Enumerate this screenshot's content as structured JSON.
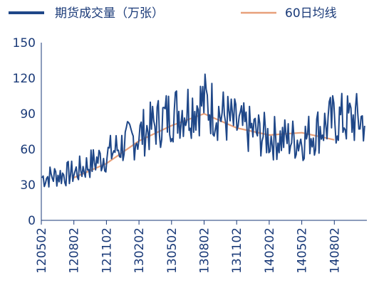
{
  "chart_data": {
    "type": "line",
    "title": "",
    "xlabel": "",
    "ylabel": "",
    "ylim": [
      0,
      150
    ],
    "yticks": [
      0,
      30,
      60,
      90,
      120,
      150
    ],
    "x_tick_labels": [
      "120502",
      "120802",
      "121102",
      "130202",
      "130502",
      "130802",
      "131102",
      "140202",
      "140502",
      "140802"
    ],
    "grid": false,
    "legend_position": "top",
    "colors": {
      "volume": "#1f4788",
      "ma60": "#e8a07a",
      "axis": "#1a3a78"
    },
    "series": [
      {
        "name": "期货成交量（万张）",
        "x": [
          "120502",
          "120802",
          "121102",
          "130202",
          "130502",
          "130802",
          "131102",
          "140202",
          "140502",
          "140802"
        ],
        "values": [
          36,
          40,
          55,
          72,
          90,
          100,
          80,
          70,
          68,
          85
        ]
      },
      {
        "name": "60日均线",
        "x": [
          "120802",
          "121102",
          "130202",
          "130502",
          "130802",
          "131102",
          "140202",
          "140502",
          "140802"
        ],
        "values": [
          36,
          48,
          67,
          80,
          90,
          78,
          72,
          74,
          68
        ]
      }
    ]
  }
}
